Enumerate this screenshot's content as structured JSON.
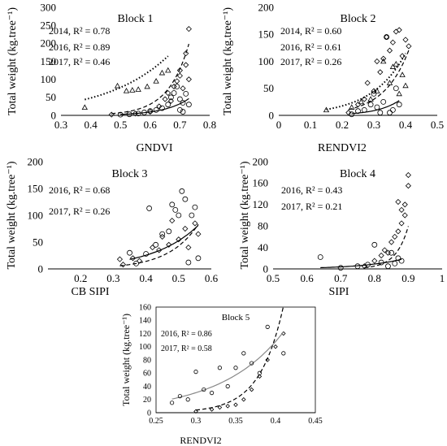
{
  "chart_data": [
    {
      "type": "scatter",
      "title": "Block 1",
      "xlabel": "GNDVI",
      "ylabel": "Total weight (kg.tree⁻¹)",
      "xlim": [
        0.3,
        0.8
      ],
      "ylim": [
        0,
        300
      ],
      "xticks": [
        "0.3",
        "0.4",
        "0.5",
        "0.6",
        "0.7",
        "0.8"
      ],
      "yticks": [
        "0",
        "50",
        "100",
        "150",
        "200",
        "250",
        "300"
      ],
      "annotations": [
        "2014, R² = 0.78",
        "2016, R² = 0.89",
        "2017, R² = 0.46"
      ],
      "series": [
        {
          "name": "2014",
          "marker": "triangle",
          "line": "dotted",
          "fit": {
            "a": 7.3,
            "b": 4.72
          },
          "x": [
            0.38,
            0.49,
            0.52,
            0.54,
            0.56,
            0.59,
            0.62,
            0.64,
            0.66
          ],
          "y": [
            22,
            82,
            68,
            70,
            72,
            80,
            95,
            118,
            125
          ]
        },
        {
          "name": "2016",
          "marker": "diamond",
          "line": "dashed",
          "fit": {
            "a": 0.0058,
            "b": 14.3
          },
          "x": [
            0.47,
            0.55,
            0.6,
            0.63,
            0.65,
            0.66,
            0.67,
            0.68,
            0.69,
            0.7,
            0.7,
            0.71,
            0.72,
            0.72,
            0.73,
            0.73
          ],
          "y": [
            2,
            5,
            10,
            25,
            45,
            62,
            40,
            80,
            95,
            110,
            125,
            75,
            140,
            172,
            240,
            100
          ]
        },
        {
          "name": "2017",
          "marker": "circle",
          "line": "solid",
          "fit": {
            "a": 0.0063,
            "b": 12.2
          },
          "x": [
            0.5,
            0.53,
            0.56,
            0.58,
            0.6,
            0.62,
            0.64,
            0.66,
            0.67,
            0.68,
            0.69,
            0.7,
            0.7,
            0.71,
            0.71,
            0.72,
            0.73
          ],
          "y": [
            2,
            3,
            5,
            8,
            12,
            15,
            20,
            30,
            50,
            62,
            80,
            45,
            15,
            35,
            10,
            60,
            30
          ]
        }
      ]
    },
    {
      "type": "scatter",
      "title": "Block 2",
      "xlabel": "RENDVI2",
      "ylabel": "Total weight (kg.tree⁻¹)",
      "xlim": [
        0,
        0.5
      ],
      "ylim": [
        0,
        200
      ],
      "xticks": [
        "0",
        "0.1",
        "0.2",
        "0.3",
        "0.4",
        "0.5"
      ],
      "yticks": [
        "0",
        "50",
        "100",
        "150",
        "200"
      ],
      "annotations": [
        "2014, R² = 0.60",
        "2016, R² = 0.61",
        "2017, R² = 0.26"
      ],
      "series": [
        {
          "name": "2014",
          "marker": "triangle",
          "line": "dotted",
          "fit": {
            "a": 2.63,
            "b": 9.44
          },
          "x": [
            0.15,
            0.23,
            0.26,
            0.29,
            0.31,
            0.33,
            0.35,
            0.36,
            0.37,
            0.38,
            0.39,
            0.4
          ],
          "y": [
            10,
            15,
            25,
            30,
            45,
            100,
            60,
            90,
            95,
            40,
            75,
            55
          ]
        },
        {
          "name": "2016",
          "marker": "diamond",
          "line": "dashed",
          "fit": {
            "a": 0.66,
            "b": 12.7
          },
          "x": [
            0.22,
            0.25,
            0.27,
            0.28,
            0.3,
            0.31,
            0.32,
            0.33,
            0.34,
            0.35,
            0.36,
            0.37,
            0.38,
            0.39,
            0.4,
            0.41
          ],
          "y": [
            5,
            20,
            30,
            60,
            45,
            100,
            80,
            105,
            145,
            120,
            135,
            155,
            158,
            110,
            140,
            128
          ]
        },
        {
          "name": "2017",
          "marker": "circle",
          "line": "solid",
          "fit": {
            "a": 0.12,
            "b": 14.3
          },
          "x": [
            0.23,
            0.25,
            0.27,
            0.29,
            0.3,
            0.31,
            0.32,
            0.33,
            0.34,
            0.35,
            0.36,
            0.37,
            0.38
          ],
          "y": [
            2,
            8,
            10,
            20,
            40,
            15,
            5,
            25,
            145,
            5,
            10,
            50,
            20
          ]
        }
      ]
    },
    {
      "type": "scatter",
      "title": "Block 3",
      "xlabel": "CB SIPI",
      "ylabel": "Total weight (kg.tree⁻¹)",
      "xlim": [
        0.1,
        0.6
      ],
      "ylim": [
        0,
        200
      ],
      "xticks": [
        "0.2",
        "0.3",
        "0.4",
        "0.5",
        "0.6"
      ],
      "yticks": [
        "0",
        "50",
        "100",
        "150",
        "200"
      ],
      "annotations": [
        "2016, R² = 0.68",
        "2017, R² = 0.26"
      ],
      "series": [
        {
          "name": "2016",
          "marker": "diamond",
          "line": "dashed",
          "fit": {
            "a": 0.168,
            "b": 11.08
          },
          "x": [
            0.32,
            0.33,
            0.36,
            0.38,
            0.42,
            0.44,
            0.45,
            0.47,
            0.48,
            0.5,
            0.52,
            0.53,
            0.55,
            0.56
          ],
          "y": [
            18,
            8,
            20,
            15,
            40,
            35,
            60,
            45,
            90,
            55,
            75,
            40,
            85,
            65
          ]
        },
        {
          "name": "2017",
          "marker": "circle",
          "line": "solid",
          "fit": {
            "a": 1.41,
            "b": 7.24
          },
          "x": [
            0.35,
            0.37,
            0.4,
            0.41,
            0.43,
            0.45,
            0.47,
            0.48,
            0.49,
            0.5,
            0.51,
            0.52,
            0.53,
            0.54,
            0.55,
            0.56
          ],
          "y": [
            30,
            10,
            28,
            113,
            45,
            65,
            70,
            120,
            110,
            100,
            145,
            130,
            12,
            100,
            115,
            20
          ]
        }
      ]
    },
    {
      "type": "scatter",
      "title": "Block 4",
      "xlabel": "SIPI",
      "ylabel": "Total weight (kg.tree⁻¹)",
      "xlim": [
        0.5,
        1
      ],
      "ylim": [
        0,
        200
      ],
      "xticks": [
        "0.5",
        "0.6",
        "0.7",
        "0.8",
        "0.9",
        "1"
      ],
      "yticks": [
        "0",
        "40",
        "80",
        "120",
        "160",
        "200"
      ],
      "annotations": [
        "2016, R² = 0.43",
        "2017, R² = 0.21"
      ],
      "series": [
        {
          "name": "2016",
          "marker": "diamond",
          "line": "dashed",
          "fit": {
            "a": 1.7e-09,
            "b": 27.3
          },
          "x": [
            0.77,
            0.8,
            0.82,
            0.83,
            0.84,
            0.85,
            0.86,
            0.87,
            0.87,
            0.88,
            0.88,
            0.89,
            0.89,
            0.9,
            0.9
          ],
          "y": [
            5,
            15,
            25,
            35,
            30,
            50,
            60,
            70,
            125,
            85,
            110,
            120,
            100,
            155,
            175
          ]
        },
        {
          "name": "2017",
          "marker": "circle",
          "line": "solid",
          "fit": {
            "a": 0.0093,
            "b": 8.6
          },
          "x": [
            0.64,
            0.7,
            0.75,
            0.78,
            0.8,
            0.82,
            0.84,
            0.85,
            0.86,
            0.87,
            0.88
          ],
          "y": [
            22,
            2,
            5,
            8,
            45,
            12,
            5,
            30,
            10,
            20,
            15
          ]
        }
      ]
    },
    {
      "type": "scatter",
      "title": "Block 5",
      "xlabel": "RENDVI2",
      "ylabel": "Total weight (kg.tree⁻¹)",
      "xlim": [
        0.25,
        0.45
      ],
      "ylim": [
        0,
        160
      ],
      "xticks": [
        "0.25",
        "0.3",
        "0.35",
        "0.4",
        "0.45"
      ],
      "yticks": [
        "0",
        "20",
        "40",
        "60",
        "80",
        "100",
        "120",
        "140",
        "160"
      ],
      "yticks_display": [
        "0",
        "20",
        "40",
        "60",
        "80",
        "100",
        "120",
        "140",
        "160"
      ],
      "annotations": [
        "2016, R² = 0.86",
        "2017, R² = 0.58"
      ],
      "series": [
        {
          "name": "2016",
          "marker": "diamond",
          "line": "dashed",
          "fit": {
            "a": 0.000155,
            "b": 33.8
          },
          "x": [
            0.3,
            0.32,
            0.33,
            0.34,
            0.35,
            0.36,
            0.37,
            0.38,
            0.39,
            0.4,
            0.41
          ],
          "y": [
            2,
            5,
            8,
            10,
            12,
            20,
            35,
            55,
            80,
            100,
            120
          ]
        },
        {
          "name": "2017",
          "marker": "circle",
          "line": "solid",
          "fit": {
            "a": 0.67,
            "b": 12.7
          },
          "x": [
            0.27,
            0.28,
            0.29,
            0.3,
            0.31,
            0.32,
            0.33,
            0.34,
            0.35,
            0.36,
            0.37,
            0.38,
            0.39,
            0.41
          ],
          "y": [
            15,
            25,
            20,
            62,
            35,
            30,
            68,
            40,
            68,
            90,
            75,
            60,
            130,
            90
          ]
        }
      ]
    }
  ]
}
